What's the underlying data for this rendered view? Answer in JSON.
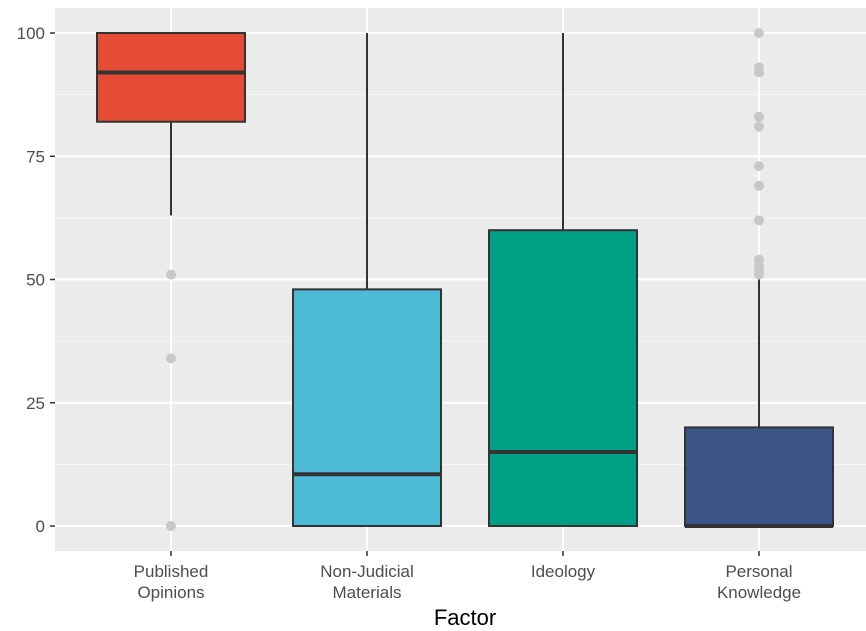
{
  "chart_data": {
    "type": "boxplot",
    "xlabel": "Factor",
    "ylabel": "",
    "ylim": [
      -4,
      104
    ],
    "yticks": [
      0,
      25,
      50,
      75,
      100
    ],
    "grid": true,
    "background": "#ebebeb",
    "categories": [
      {
        "label_lines": [
          "Published",
          "Opinions"
        ],
        "color": "#e64b35",
        "whisker_low": 63,
        "q1": 82,
        "median": 92,
        "q3": 100,
        "whisker_high": 100,
        "outliers": [
          51,
          34,
          0
        ]
      },
      {
        "label_lines": [
          "Non-Judicial",
          "Materials"
        ],
        "color": "#4dbbd5",
        "whisker_low": 0,
        "q1": 0,
        "median": 10.5,
        "q3": 48,
        "whisker_high": 100,
        "outliers": []
      },
      {
        "label_lines": [
          "Ideology"
        ],
        "color": "#00a087",
        "whisker_low": 0,
        "q1": 0,
        "median": 15,
        "q3": 60,
        "whisker_high": 100,
        "outliers": []
      },
      {
        "label_lines": [
          "Personal",
          "Knowledge"
        ],
        "color": "#3c5488",
        "whisker_low": 0,
        "q1": 0,
        "median": 0,
        "q3": 20,
        "whisker_high": 50,
        "outliers": [
          100,
          93,
          92,
          83,
          81,
          73,
          69,
          62,
          54,
          53,
          52,
          51
        ]
      }
    ]
  }
}
